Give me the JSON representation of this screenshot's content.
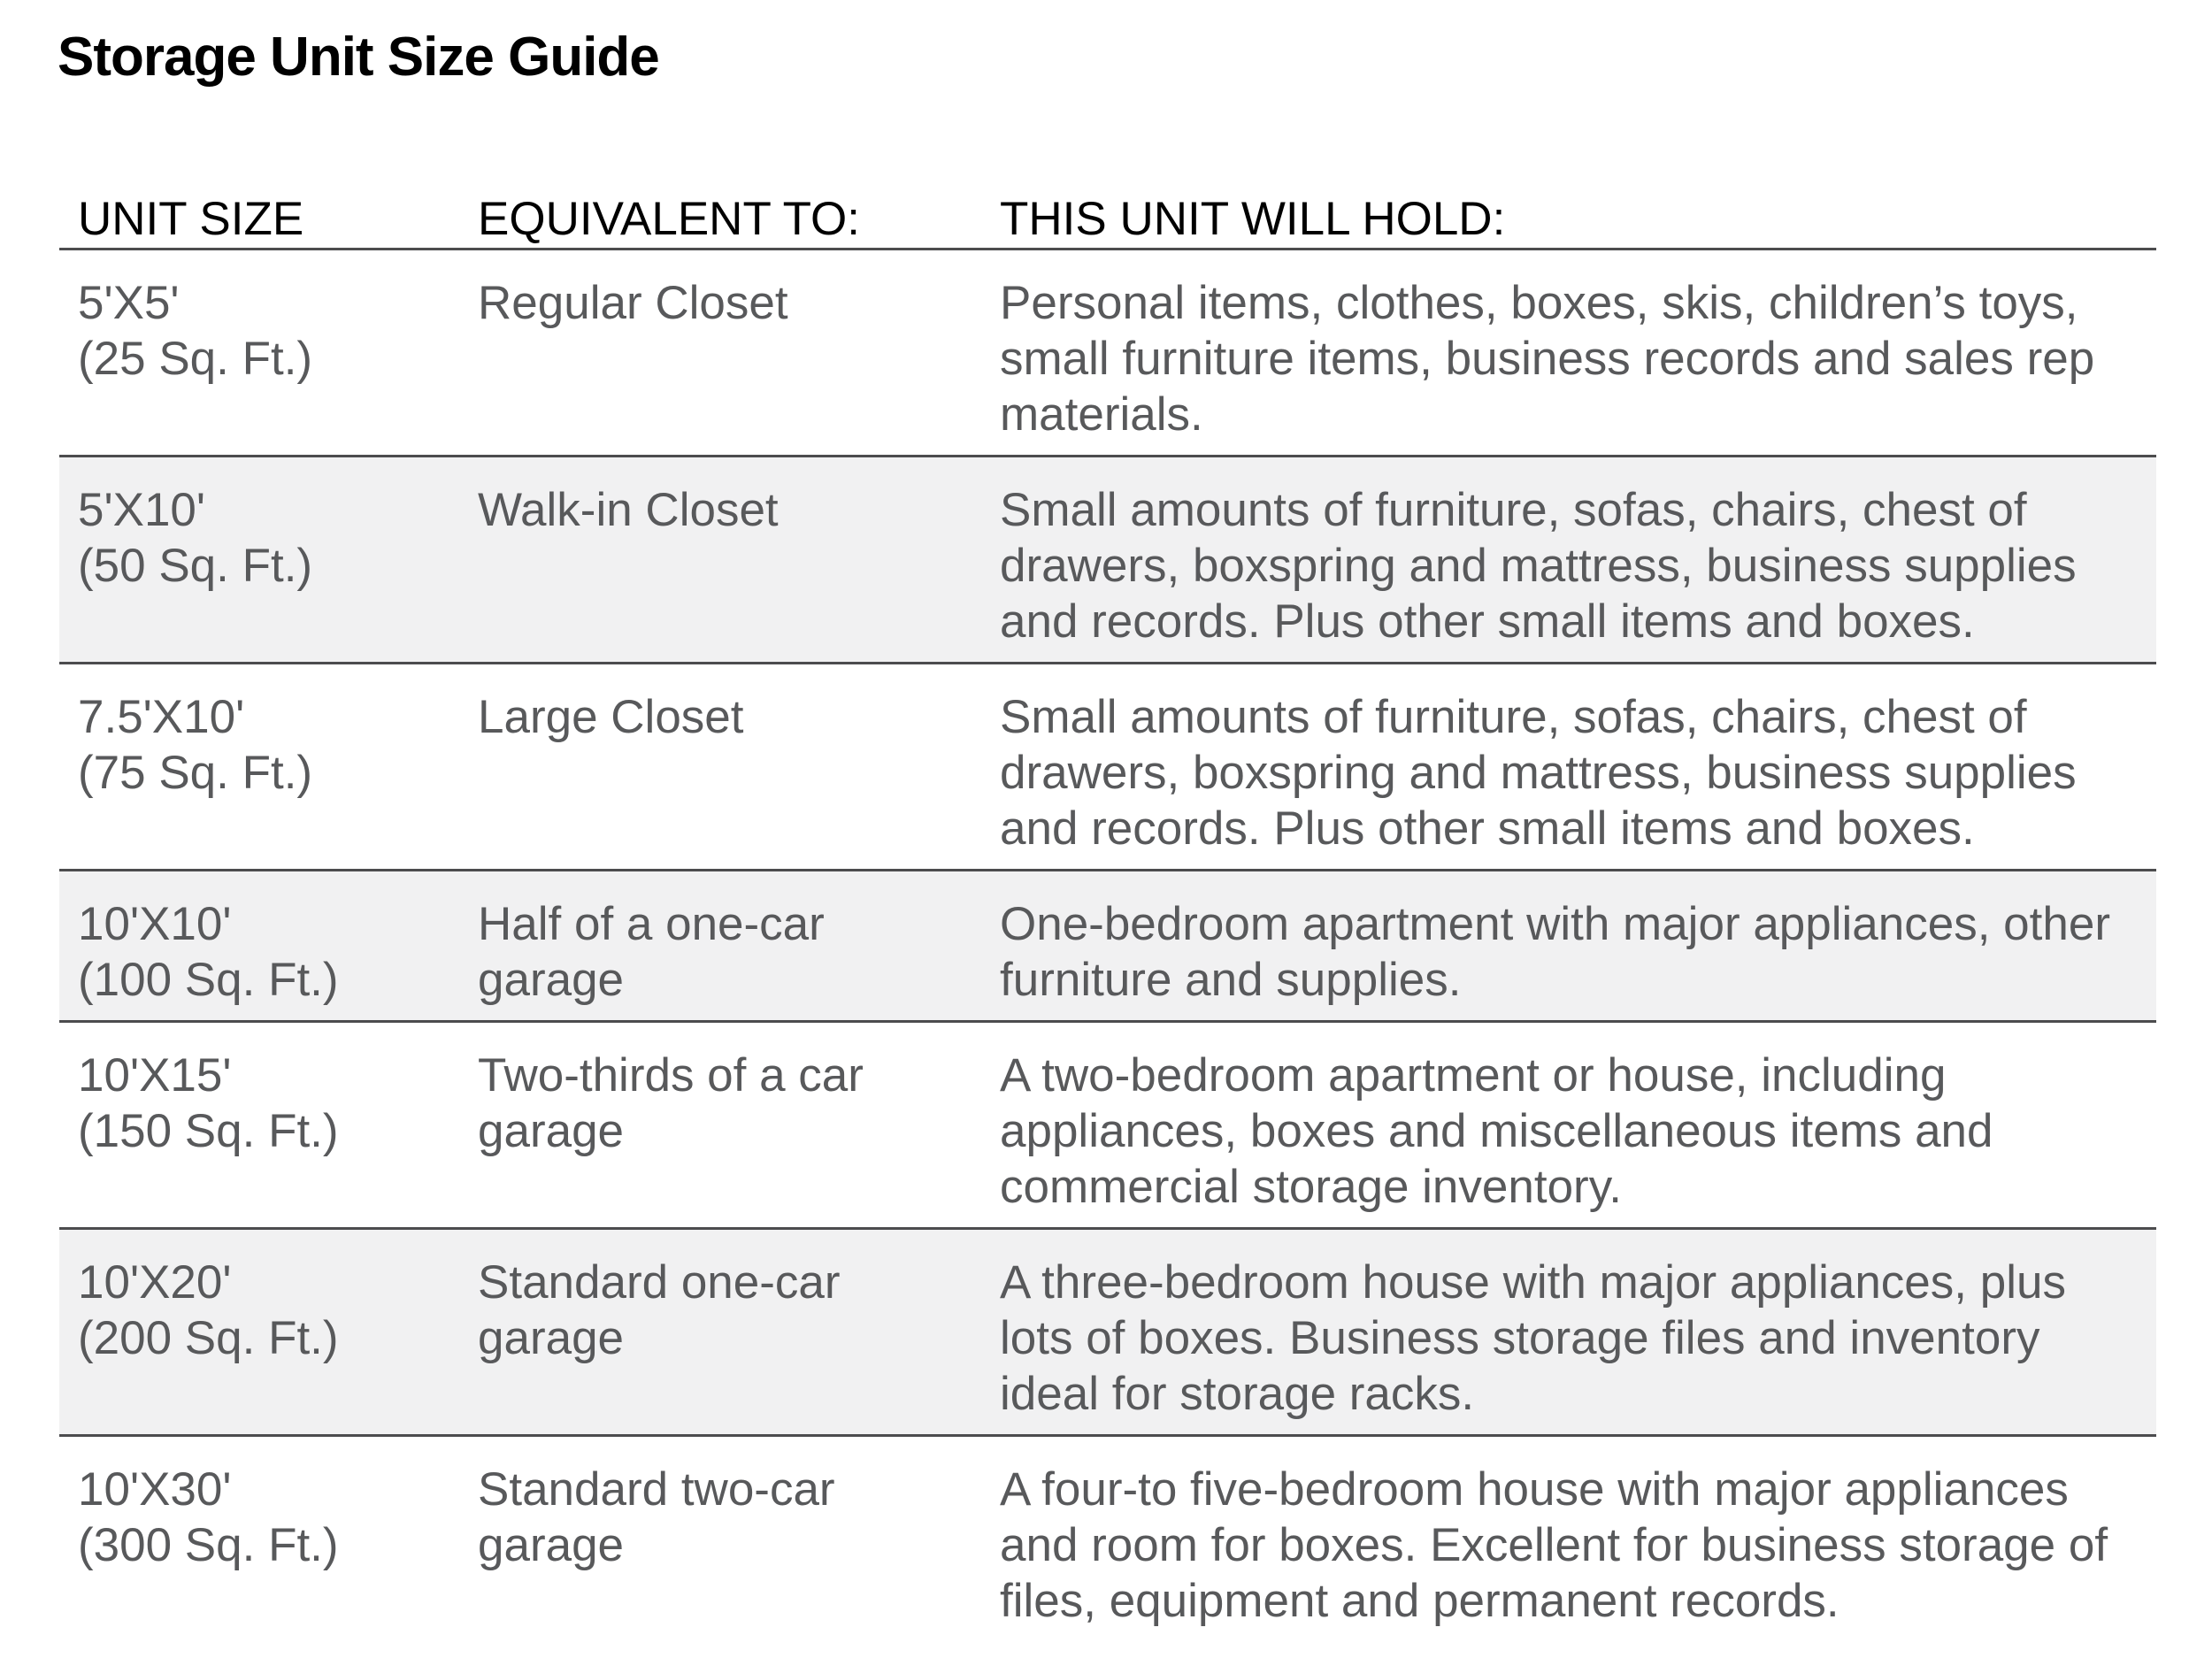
{
  "page": {
    "title": "Storage Unit Size Guide"
  },
  "colors": {
    "row_shade": "#f1f1f2",
    "rule": "#4c4c4e",
    "body_text": "#58595b",
    "heading_text": "#000000",
    "background": "#ffffff"
  },
  "table": {
    "headers": [
      "UNIT SIZE",
      "EQUIVALENT TO:",
      "THIS UNIT WILL HOLD:"
    ],
    "rows": [
      {
        "unit_size": "5'X5'",
        "area": "(25 Sq. Ft.)",
        "equivalent": "Regular Closet",
        "holds": "Personal items, clothes, boxes, skis, children’s toys, small furniture items, business records and sales rep materials."
      },
      {
        "unit_size": "5'X10'",
        "area": "(50 Sq. Ft.)",
        "equivalent": "Walk-in Closet",
        "holds": "Small amounts of furniture, sofas, chairs, chest of drawers, boxspring and mattress, business supplies and records. Plus other small items and boxes."
      },
      {
        "unit_size": "7.5'X10'",
        "area": "(75 Sq. Ft.)",
        "equivalent": "Large Closet",
        "holds": "Small amounts of furniture, sofas, chairs, chest of drawers, boxspring and mattress, business supplies and records. Plus other small items and boxes."
      },
      {
        "unit_size": "10'X10'",
        "area": "(100 Sq. Ft.)",
        "equivalent": "Half of a one-car garage",
        "holds": "One-bedroom apartment with major appliances, other furniture and supplies."
      },
      {
        "unit_size": "10'X15'",
        "area": "(150 Sq. Ft.)",
        "equivalent": "Two-thirds of a car garage",
        "holds": "A two-bedroom apartment or house, including appliances, boxes and miscellaneous items and commercial storage inventory."
      },
      {
        "unit_size": "10'X20'",
        "area": "(200 Sq. Ft.)",
        "equivalent": "Standard one-car garage",
        "holds": "A three-bedroom house with major appliances, plus lots of boxes. Business storage files and inventory ideal for storage racks."
      },
      {
        "unit_size": "10'X30'",
        "area": "(300 Sq. Ft.)",
        "equivalent": "Standard two-car garage",
        "holds": "A four-to five-bedroom house with major appliances and room for boxes. Excellent for business storage of files, equipment and permanent records."
      }
    ]
  }
}
